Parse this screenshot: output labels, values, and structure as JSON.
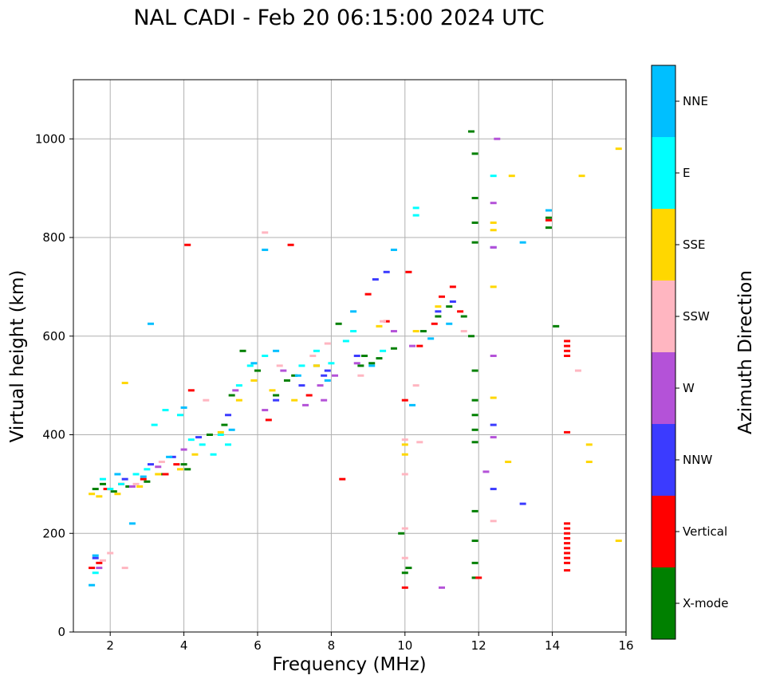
{
  "chart_data": {
    "type": "scatter",
    "title": "NAL CADI - Feb 20 06:15:00 2024 UTC",
    "xlabel": "Frequency (MHz)",
    "ylabel": "Virtual height (km)",
    "xlim": [
      1,
      16
    ],
    "ylim": [
      0,
      1120
    ],
    "xticks": [
      "2",
      "4",
      "6",
      "8",
      "10",
      "12",
      "14",
      "16"
    ],
    "yticks": [
      "0",
      "200",
      "400",
      "600",
      "800",
      "1000"
    ],
    "grid": true,
    "colorbar": {
      "label": "Azimuth Direction",
      "categories": [
        {
          "name": "X-mode",
          "color": "#008000"
        },
        {
          "name": "Vertical",
          "color": "#ff0000"
        },
        {
          "name": "NNW",
          "color": "#3b3bff"
        },
        {
          "name": "W",
          "color": "#b452d8"
        },
        {
          "name": "SSW",
          "color": "#ffb6c1"
        },
        {
          "name": "SSE",
          "color": "#ffd700"
        },
        {
          "name": "E",
          "color": "#00ffff"
        },
        {
          "name": "NNE",
          "color": "#00bfff"
        }
      ]
    },
    "series": [
      {
        "name": "X-mode",
        "points": [
          [
            1.6,
            290
          ],
          [
            1.8,
            300
          ],
          [
            2.1,
            285
          ],
          [
            2.5,
            295
          ],
          [
            3.0,
            305
          ],
          [
            3.4,
            320
          ],
          [
            4.0,
            340
          ],
          [
            4.1,
            330
          ],
          [
            4.7,
            400
          ],
          [
            5.1,
            420
          ],
          [
            5.3,
            480
          ],
          [
            5.6,
            570
          ],
          [
            6.0,
            530
          ],
          [
            6.5,
            480
          ],
          [
            6.8,
            510
          ],
          [
            7.0,
            520
          ],
          [
            7.6,
            540
          ],
          [
            8.2,
            625
          ],
          [
            8.8,
            540
          ],
          [
            8.9,
            560
          ],
          [
            9.1,
            545
          ],
          [
            9.3,
            555
          ],
          [
            9.7,
            575
          ],
          [
            9.9,
            200
          ],
          [
            10.0,
            120
          ],
          [
            10.1,
            130
          ],
          [
            10.5,
            610
          ],
          [
            10.9,
            640
          ],
          [
            11.2,
            660
          ],
          [
            11.6,
            640
          ],
          [
            11.8,
            1015
          ],
          [
            11.9,
            970
          ],
          [
            11.9,
            880
          ],
          [
            11.9,
            830
          ],
          [
            11.9,
            790
          ],
          [
            11.8,
            600
          ],
          [
            11.9,
            530
          ],
          [
            11.9,
            470
          ],
          [
            11.9,
            440
          ],
          [
            11.9,
            410
          ],
          [
            11.9,
            385
          ],
          [
            11.9,
            245
          ],
          [
            11.9,
            185
          ],
          [
            11.9,
            140
          ],
          [
            11.9,
            110
          ],
          [
            13.9,
            840
          ],
          [
            13.9,
            820
          ],
          [
            14.1,
            620
          ]
        ]
      },
      {
        "name": "Vertical",
        "points": [
          [
            1.5,
            130
          ],
          [
            1.7,
            140
          ],
          [
            1.9,
            290
          ],
          [
            2.3,
            300
          ],
          [
            2.9,
            310
          ],
          [
            3.5,
            320
          ],
          [
            3.8,
            340
          ],
          [
            4.1,
            785
          ],
          [
            4.2,
            490
          ],
          [
            6.3,
            430
          ],
          [
            6.9,
            785
          ],
          [
            7.4,
            480
          ],
          [
            8.3,
            310
          ],
          [
            9.0,
            685
          ],
          [
            9.5,
            630
          ],
          [
            10.0,
            470
          ],
          [
            10.0,
            90
          ],
          [
            10.1,
            730
          ],
          [
            10.4,
            580
          ],
          [
            10.8,
            625
          ],
          [
            11.0,
            680
          ],
          [
            11.3,
            700
          ],
          [
            11.5,
            650
          ],
          [
            12.0,
            110
          ],
          [
            13.9,
            835
          ],
          [
            14.4,
            590
          ],
          [
            14.4,
            580
          ],
          [
            14.4,
            570
          ],
          [
            14.4,
            560
          ],
          [
            14.4,
            405
          ],
          [
            14.4,
            220
          ],
          [
            14.4,
            210
          ],
          [
            14.4,
            200
          ],
          [
            14.4,
            190
          ],
          [
            14.4,
            180
          ],
          [
            14.4,
            170
          ],
          [
            14.4,
            160
          ],
          [
            14.4,
            150
          ],
          [
            14.4,
            140
          ],
          [
            14.4,
            125
          ]
        ]
      },
      {
        "name": "NNW",
        "points": [
          [
            1.6,
            150
          ],
          [
            2.4,
            310
          ],
          [
            3.1,
            340
          ],
          [
            3.7,
            355
          ],
          [
            4.4,
            395
          ],
          [
            5.2,
            440
          ],
          [
            6.5,
            470
          ],
          [
            7.2,
            500
          ],
          [
            7.8,
            520
          ],
          [
            7.9,
            530
          ],
          [
            8.7,
            560
          ],
          [
            9.2,
            715
          ],
          [
            9.5,
            730
          ],
          [
            10.9,
            650
          ],
          [
            11.3,
            670
          ],
          [
            12.4,
            780
          ],
          [
            12.4,
            420
          ],
          [
            12.4,
            290
          ],
          [
            13.2,
            260
          ]
        ]
      },
      {
        "name": "W",
        "points": [
          [
            1.7,
            130
          ],
          [
            2.6,
            295
          ],
          [
            3.3,
            335
          ],
          [
            4.0,
            370
          ],
          [
            5.4,
            490
          ],
          [
            6.2,
            450
          ],
          [
            6.7,
            530
          ],
          [
            7.3,
            460
          ],
          [
            7.7,
            500
          ],
          [
            7.8,
            470
          ],
          [
            8.1,
            520
          ],
          [
            8.7,
            545
          ],
          [
            9.7,
            610
          ],
          [
            10.2,
            580
          ],
          [
            11.0,
            90
          ],
          [
            12.2,
            325
          ],
          [
            12.4,
            780
          ],
          [
            12.4,
            560
          ],
          [
            12.4,
            395
          ],
          [
            12.5,
            1000
          ],
          [
            12.4,
            870
          ]
        ]
      },
      {
        "name": "SSW",
        "points": [
          [
            1.8,
            145
          ],
          [
            2.0,
            160
          ],
          [
            2.4,
            130
          ],
          [
            2.7,
            300
          ],
          [
            3.4,
            345
          ],
          [
            4.6,
            470
          ],
          [
            6.2,
            810
          ],
          [
            6.6,
            540
          ],
          [
            7.5,
            560
          ],
          [
            7.9,
            585
          ],
          [
            8.8,
            520
          ],
          [
            9.4,
            630
          ],
          [
            10.0,
            390
          ],
          [
            10.0,
            320
          ],
          [
            10.0,
            210
          ],
          [
            10.0,
            150
          ],
          [
            10.3,
            500
          ],
          [
            10.4,
            385
          ],
          [
            11.6,
            610
          ],
          [
            12.4,
            225
          ],
          [
            14.7,
            530
          ]
        ]
      },
      {
        "name": "SSE",
        "points": [
          [
            1.5,
            280
          ],
          [
            1.7,
            275
          ],
          [
            2.0,
            290
          ],
          [
            2.2,
            280
          ],
          [
            2.4,
            505
          ],
          [
            2.8,
            295
          ],
          [
            3.3,
            320
          ],
          [
            3.9,
            330
          ],
          [
            4.3,
            360
          ],
          [
            5.0,
            405
          ],
          [
            5.5,
            470
          ],
          [
            5.9,
            510
          ],
          [
            6.4,
            490
          ],
          [
            7.0,
            470
          ],
          [
            7.6,
            540
          ],
          [
            9.3,
            620
          ],
          [
            10.0,
            380
          ],
          [
            10.0,
            360
          ],
          [
            10.3,
            610
          ],
          [
            10.9,
            660
          ],
          [
            12.4,
            830
          ],
          [
            12.4,
            815
          ],
          [
            12.4,
            700
          ],
          [
            12.4,
            475
          ],
          [
            12.8,
            345
          ],
          [
            12.9,
            925
          ],
          [
            14.8,
            925
          ],
          [
            15.0,
            380
          ],
          [
            15.0,
            345
          ],
          [
            15.8,
            980
          ],
          [
            15.8,
            185
          ]
        ]
      },
      {
        "name": "E",
        "points": [
          [
            1.6,
            120
          ],
          [
            1.8,
            310
          ],
          [
            2.0,
            290
          ],
          [
            2.3,
            300
          ],
          [
            2.7,
            320
          ],
          [
            3.0,
            330
          ],
          [
            3.2,
            420
          ],
          [
            3.5,
            450
          ],
          [
            3.9,
            440
          ],
          [
            4.2,
            390
          ],
          [
            4.5,
            380
          ],
          [
            4.8,
            360
          ],
          [
            5.0,
            400
          ],
          [
            5.2,
            380
          ],
          [
            5.5,
            500
          ],
          [
            5.8,
            540
          ],
          [
            6.2,
            560
          ],
          [
            7.2,
            540
          ],
          [
            7.6,
            570
          ],
          [
            8.0,
            545
          ],
          [
            8.4,
            590
          ],
          [
            8.6,
            610
          ],
          [
            9.4,
            570
          ],
          [
            10.3,
            860
          ],
          [
            10.3,
            845
          ],
          [
            12.4,
            925
          ]
        ]
      },
      {
        "name": "NNE",
        "points": [
          [
            1.5,
            95
          ],
          [
            1.6,
            155
          ],
          [
            2.2,
            320
          ],
          [
            2.6,
            220
          ],
          [
            2.9,
            315
          ],
          [
            3.1,
            625
          ],
          [
            3.6,
            355
          ],
          [
            4.0,
            455
          ],
          [
            5.3,
            410
          ],
          [
            5.9,
            545
          ],
          [
            6.2,
            775
          ],
          [
            6.5,
            570
          ],
          [
            7.1,
            520
          ],
          [
            7.9,
            510
          ],
          [
            8.6,
            650
          ],
          [
            9.1,
            540
          ],
          [
            9.7,
            775
          ],
          [
            10.2,
            460
          ],
          [
            10.7,
            595
          ],
          [
            11.2,
            625
          ],
          [
            13.2,
            790
          ],
          [
            13.9,
            855
          ]
        ]
      }
    ]
  }
}
